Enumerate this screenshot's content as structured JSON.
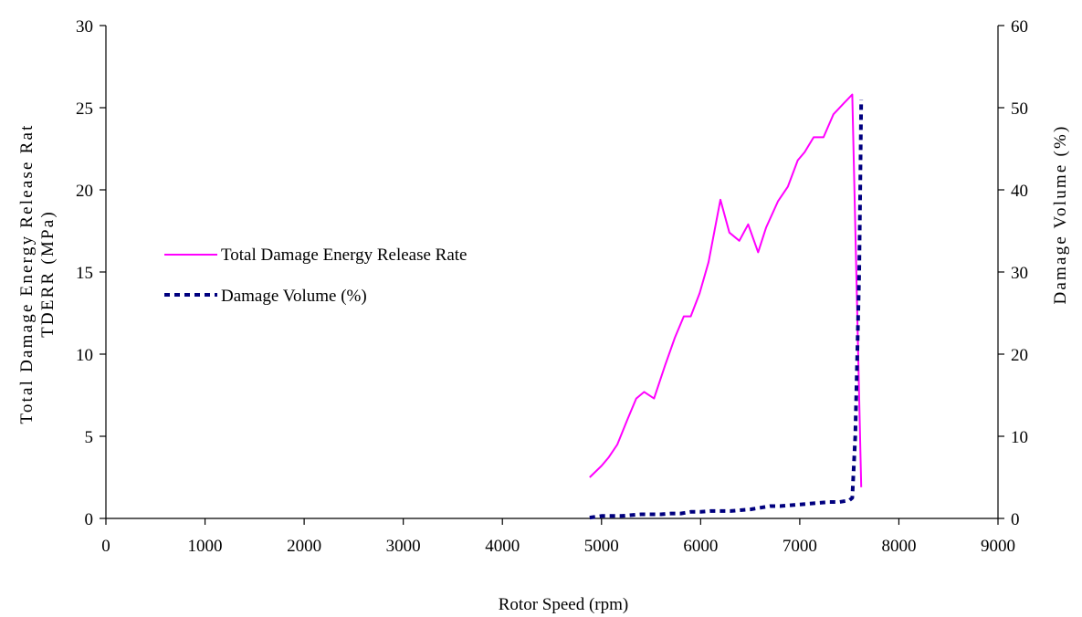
{
  "chart_data": {
    "type": "line",
    "title": "",
    "xlabel": "Rotor Speed (rpm)",
    "ylabel_left_line1": "Total Damage Energy Release Rat",
    "ylabel_left_line2": "TDERR (MPa)",
    "ylabel_right": "Damage Volume (%)",
    "xlim": [
      0,
      9000
    ],
    "ylim_left": [
      0,
      30
    ],
    "ylim_right": [
      0,
      60
    ],
    "x_ticks": [
      "0",
      "1000",
      "2000",
      "3000",
      "4000",
      "5000",
      "6000",
      "7000",
      "8000",
      "9000"
    ],
    "y_ticks_left": [
      "0",
      "5",
      "10",
      "15",
      "20",
      "25",
      "30"
    ],
    "y_ticks_right": [
      "0",
      "10",
      "20",
      "30",
      "40",
      "50",
      "60"
    ],
    "grid": false,
    "legend_placement": "center-left",
    "series": [
      {
        "name": "Total Damage Energy Release Rate",
        "axis": "left",
        "color": "#ff00ff",
        "style": "solid",
        "x": [
          4880,
          5000,
          5070,
          5160,
          5260,
          5350,
          5430,
          5530,
          5640,
          5740,
          5830,
          5900,
          5990,
          6080,
          6200,
          6290,
          6390,
          6480,
          6580,
          6660,
          6780,
          6880,
          6980,
          7050,
          7140,
          7240,
          7340,
          7450,
          7530,
          7620
        ],
        "y": [
          2.5,
          3.2,
          3.7,
          4.5,
          6.0,
          7.3,
          7.7,
          7.3,
          9.3,
          11.0,
          12.3,
          12.3,
          13.7,
          15.6,
          19.4,
          17.4,
          16.9,
          17.9,
          16.2,
          17.7,
          19.3,
          20.2,
          21.8,
          22.3,
          23.2,
          23.2,
          24.6,
          25.3,
          25.8,
          1.9
        ]
      },
      {
        "name": "Damage Volume (%)",
        "axis": "right",
        "color": "#00007f",
        "style": "dashed",
        "x": [
          4880,
          5000,
          5100,
          5200,
          5300,
          5400,
          5500,
          5600,
          5700,
          5800,
          5900,
          6000,
          6100,
          6200,
          6300,
          6400,
          6500,
          6600,
          6700,
          6800,
          6900,
          7000,
          7100,
          7200,
          7300,
          7400,
          7500,
          7530,
          7560,
          7580,
          7600,
          7610,
          7620
        ],
        "y": [
          0.1,
          0.3,
          0.3,
          0.3,
          0.4,
          0.5,
          0.5,
          0.5,
          0.6,
          0.6,
          0.8,
          0.8,
          0.9,
          0.9,
          0.9,
          1.0,
          1.1,
          1.3,
          1.5,
          1.5,
          1.6,
          1.7,
          1.8,
          1.9,
          2.0,
          2.0,
          2.2,
          2.5,
          10.0,
          20.0,
          30.0,
          40.0,
          51.0
        ]
      }
    ]
  }
}
